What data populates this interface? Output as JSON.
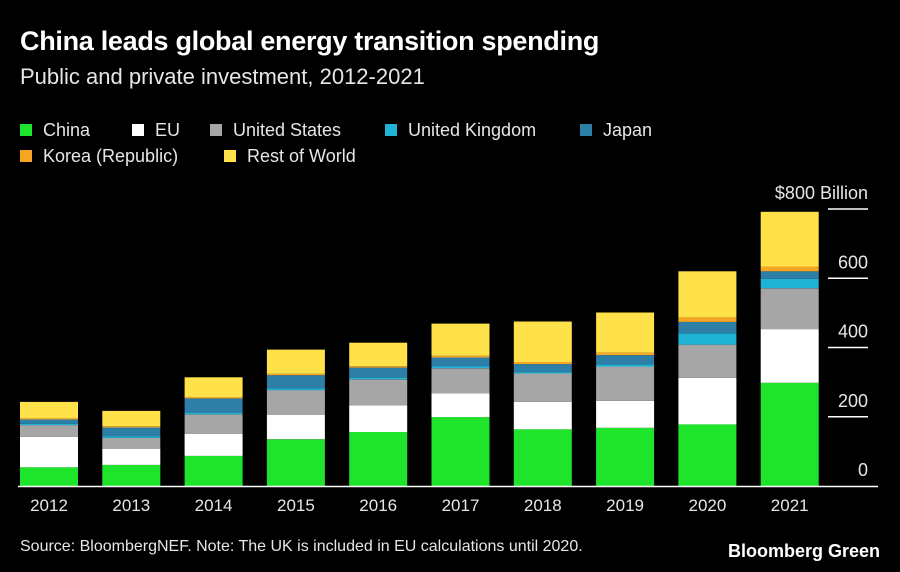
{
  "header": {
    "title": "China leads global energy transition spending",
    "subtitle": "Public and private investment, 2012-2021"
  },
  "legend": {
    "row1": [
      "China",
      "EU",
      "United States",
      "United Kingdom",
      "Japan"
    ],
    "row2": [
      "Korea (Republic)",
      "Rest of World"
    ]
  },
  "colors": {
    "China": "#1ee52c",
    "EU": "#ffffff",
    "United States": "#a6a6a6",
    "United Kingdom": "#1fb3d6",
    "Japan": "#2e7fa8",
    "Korea (Republic)": "#f5a623",
    "Rest of World": "#ffe14a"
  },
  "chart_data": {
    "type": "bar",
    "stacked": true,
    "categories": [
      "2012",
      "2013",
      "2014",
      "2015",
      "2016",
      "2017",
      "2018",
      "2019",
      "2020",
      "2021"
    ],
    "series": [
      {
        "name": "China",
        "values": [
          54,
          61,
          87,
          135,
          156,
          199,
          164,
          168,
          178,
          298
        ]
      },
      {
        "name": "EU",
        "values": [
          88,
          46,
          64,
          70,
          77,
          69,
          79,
          78,
          134,
          155
        ]
      },
      {
        "name": "United States",
        "values": [
          34,
          32,
          56,
          72,
          75,
          72,
          82,
          99,
          96,
          118
        ]
      },
      {
        "name": "United Kingdom",
        "values": [
          4,
          4,
          5,
          5,
          5,
          5,
          4,
          6,
          33,
          27
        ]
      },
      {
        "name": "Japan",
        "values": [
          12,
          26,
          41,
          38,
          29,
          26,
          23,
          27,
          33,
          22
        ]
      },
      {
        "name": "Korea (Republic)",
        "values": [
          4,
          4,
          4,
          4,
          4,
          5,
          6,
          7,
          13,
          14
        ]
      },
      {
        "name": "Rest of World",
        "values": [
          47,
          44,
          57,
          70,
          68,
          93,
          117,
          116,
          133,
          158
        ]
      }
    ],
    "y_tick_labels": [
      "$800 Billion",
      "600",
      "400",
      "200",
      "0"
    ],
    "y_ticks": [
      800,
      600,
      400,
      200,
      0
    ],
    "ylim": [
      0,
      800
    ],
    "grid": false,
    "legend_position": "top-left"
  },
  "footer": {
    "source": "Source: BloombergNEF. Note: The UK is included in EU calculations until 2020.",
    "brand": "Bloomberg Green"
  }
}
